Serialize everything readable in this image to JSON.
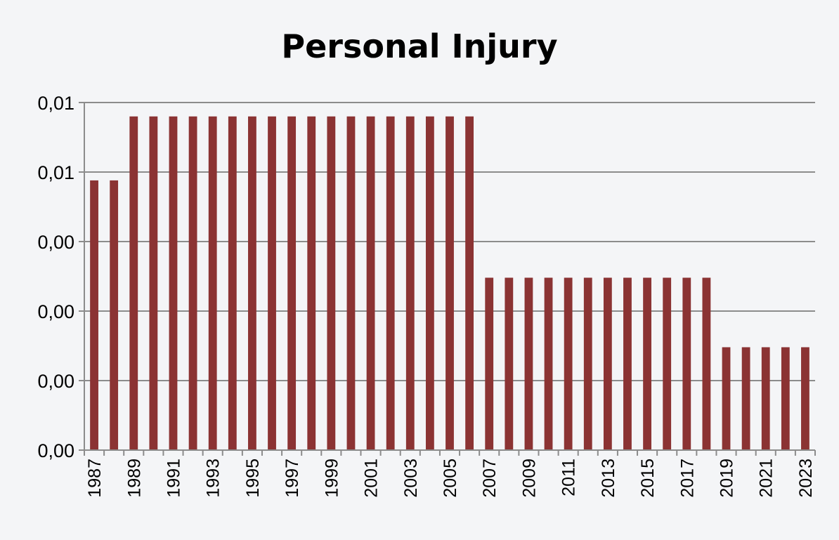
{
  "chart_data": {
    "type": "bar",
    "title": "Personal Injury",
    "xlabel": "",
    "ylabel": "",
    "ylim": [
      0,
      0.0125
    ],
    "yticks": [
      0,
      0.0025,
      0.005,
      0.0075,
      0.01,
      0.0125
    ],
    "ytick_labels": [
      "0,00",
      "0,00",
      "0,00",
      "0,00",
      "0,01",
      "0,01"
    ],
    "grid": true,
    "legend": "none",
    "bar_color": "#8b3333",
    "categories": [
      "1987",
      "1988",
      "1989",
      "1990",
      "1991",
      "1992",
      "1993",
      "1994",
      "1995",
      "1996",
      "1997",
      "1998",
      "1999",
      "2000",
      "2001",
      "2002",
      "2003",
      "2004",
      "2005",
      "2006",
      "2007",
      "2008",
      "2009",
      "2010",
      "2011",
      "2012",
      "2013",
      "2014",
      "2015",
      "2016",
      "2017",
      "2018",
      "2019",
      "2020",
      "2021",
      "2022",
      "2023"
    ],
    "xtick_labels": [
      "1987",
      "",
      "1989",
      "",
      "1991",
      "",
      "1993",
      "",
      "1995",
      "",
      "1997",
      "",
      "1999",
      "",
      "2001",
      "",
      "2003",
      "",
      "2005",
      "",
      "2007",
      "",
      "2009",
      "",
      "2011",
      "",
      "2013",
      "",
      "2015",
      "",
      "2017",
      "",
      "2019",
      "",
      "2021",
      "",
      "2023"
    ],
    "values": [
      0.0097,
      0.0097,
      0.012,
      0.012,
      0.012,
      0.012,
      0.012,
      0.012,
      0.012,
      0.012,
      0.012,
      0.012,
      0.012,
      0.012,
      0.012,
      0.012,
      0.012,
      0.012,
      0.012,
      0.012,
      0.0062,
      0.0062,
      0.0062,
      0.0062,
      0.0062,
      0.0062,
      0.0062,
      0.0062,
      0.0062,
      0.0062,
      0.0062,
      0.0062,
      0.0037,
      0.0037,
      0.0037,
      0.0037,
      0.0037
    ]
  }
}
